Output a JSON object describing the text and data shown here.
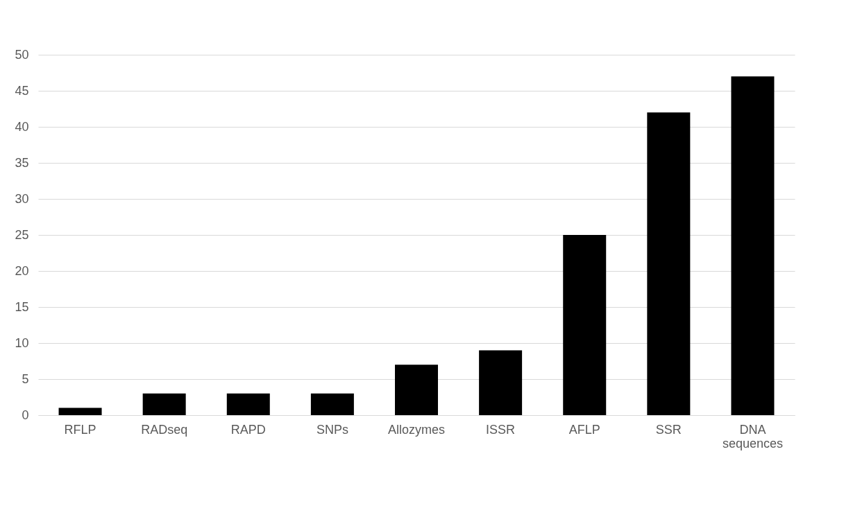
{
  "chart_data": {
    "type": "bar",
    "categories": [
      "RFLP",
      "RADseq",
      "RAPD",
      "SNPs",
      "Allozymes",
      "ISSR",
      "AFLP",
      "SSR",
      "DNA sequences"
    ],
    "values": [
      1,
      3,
      3,
      3,
      7,
      9,
      25,
      42,
      47
    ],
    "color": "#000000",
    "ylim": [
      0,
      50
    ],
    "yticks": [
      0,
      5,
      10,
      15,
      20,
      25,
      30,
      35,
      40,
      45,
      50
    ],
    "grid": "y"
  }
}
